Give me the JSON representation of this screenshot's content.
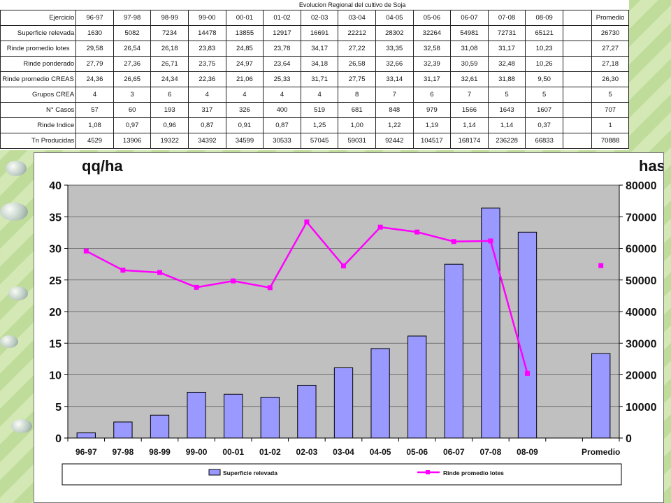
{
  "table": {
    "title": "Evolucion Regional del cultivo de Soja",
    "header_label": "Ejercicio",
    "columns": [
      "96-97",
      "97-98",
      "98-99",
      "99-00",
      "00-01",
      "01-02",
      "02-03",
      "03-04",
      "04-05",
      "05-06",
      "06-07",
      "07-08",
      "08-09",
      ""
    ],
    "promedio_label": "Promedio",
    "rows": [
      {
        "label": "Superficie relevada",
        "cells": [
          "1630",
          "5082",
          "7234",
          "14478",
          "13855",
          "12917",
          "16691",
          "22212",
          "28302",
          "32264",
          "54981",
          "72731",
          "65121",
          ""
        ],
        "promedio": "26730"
      },
      {
        "label": "Rinde promedio lotes",
        "cells": [
          "29,58",
          "26,54",
          "26,18",
          "23,83",
          "24,85",
          "23,78",
          "34,17",
          "27,22",
          "33,35",
          "32,58",
          "31,08",
          "31,17",
          "10,23",
          ""
        ],
        "promedio": "27,27"
      },
      {
        "label": "Rinde ponderado",
        "cells": [
          "27,79",
          "27,36",
          "26,71",
          "23,75",
          "24,97",
          "23,64",
          "34,18",
          "26,58",
          "32,66",
          "32,39",
          "30,59",
          "32,48",
          "10,26",
          ""
        ],
        "promedio": "27,18"
      },
      {
        "label": "Rinde promedio CREAS",
        "cells": [
          "24,36",
          "26,65",
          "24,34",
          "22,36",
          "21,06",
          "25,33",
          "31,71",
          "27,75",
          "33,14",
          "31,17",
          "32,61",
          "31,88",
          "9,50",
          ""
        ],
        "promedio": "26,30"
      },
      {
        "label": "Grupos CREA",
        "cells": [
          "4",
          "3",
          "6",
          "4",
          "4",
          "4",
          "4",
          "8",
          "7",
          "6",
          "7",
          "5",
          "5",
          ""
        ],
        "promedio": "5"
      },
      {
        "label": "N° Casos",
        "cells": [
          "57",
          "60",
          "193",
          "317",
          "326",
          "400",
          "519",
          "681",
          "848",
          "979",
          "1566",
          "1643",
          "1607",
          ""
        ],
        "promedio": "707"
      },
      {
        "label": "Rinde Indice",
        "cells": [
          "1,08",
          "0,97",
          "0,96",
          "0,87",
          "0,91",
          "0,87",
          "1,25",
          "1,00",
          "1,22",
          "1,19",
          "1,14",
          "1,14",
          "0,37",
          ""
        ],
        "promedio": "1"
      },
      {
        "label": "Tn Producidas",
        "cells": [
          "4529",
          "13906",
          "19322",
          "34392",
          "34599",
          "30533",
          "57045",
          "59031",
          "92442",
          "104517",
          "168174",
          "236228",
          "66833",
          ""
        ],
        "promedio": "70888"
      }
    ]
  },
  "chart_data": {
    "type": "bar",
    "left_unit": "qq/ha",
    "right_unit": "has",
    "categories": [
      "96-97",
      "97-98",
      "98-99",
      "99-00",
      "00-01",
      "01-02",
      "02-03",
      "03-04",
      "04-05",
      "05-06",
      "06-07",
      "07-08",
      "08-09",
      "",
      "Promedio"
    ],
    "series": [
      {
        "name": "Superficie relevada",
        "type": "bar",
        "axis": "right",
        "color": "#9999ff",
        "values": [
          1630,
          5082,
          7234,
          14478,
          13855,
          12917,
          16691,
          22212,
          28302,
          32264,
          54981,
          72731,
          65121,
          null,
          26730
        ]
      },
      {
        "name": "Rinde promedio lotes",
        "type": "line",
        "axis": "left",
        "color": "#ff00ff",
        "values": [
          29.58,
          26.54,
          26.18,
          23.83,
          24.85,
          23.78,
          34.17,
          27.22,
          33.35,
          32.58,
          31.08,
          31.17,
          10.23,
          null,
          27.27
        ]
      }
    ],
    "left_axis": {
      "min": 0,
      "max": 40,
      "ticks": [
        "0",
        "5",
        "10",
        "15",
        "20",
        "25",
        "30",
        "35",
        "40"
      ]
    },
    "right_axis": {
      "min": 0,
      "max": 80000,
      "ticks": [
        "0",
        "10000",
        "20000",
        "30000",
        "40000",
        "50000",
        "60000",
        "70000",
        "80000"
      ]
    },
    "plot_background": "#c0c0c0",
    "grid": true,
    "legend_position": "bottom"
  }
}
